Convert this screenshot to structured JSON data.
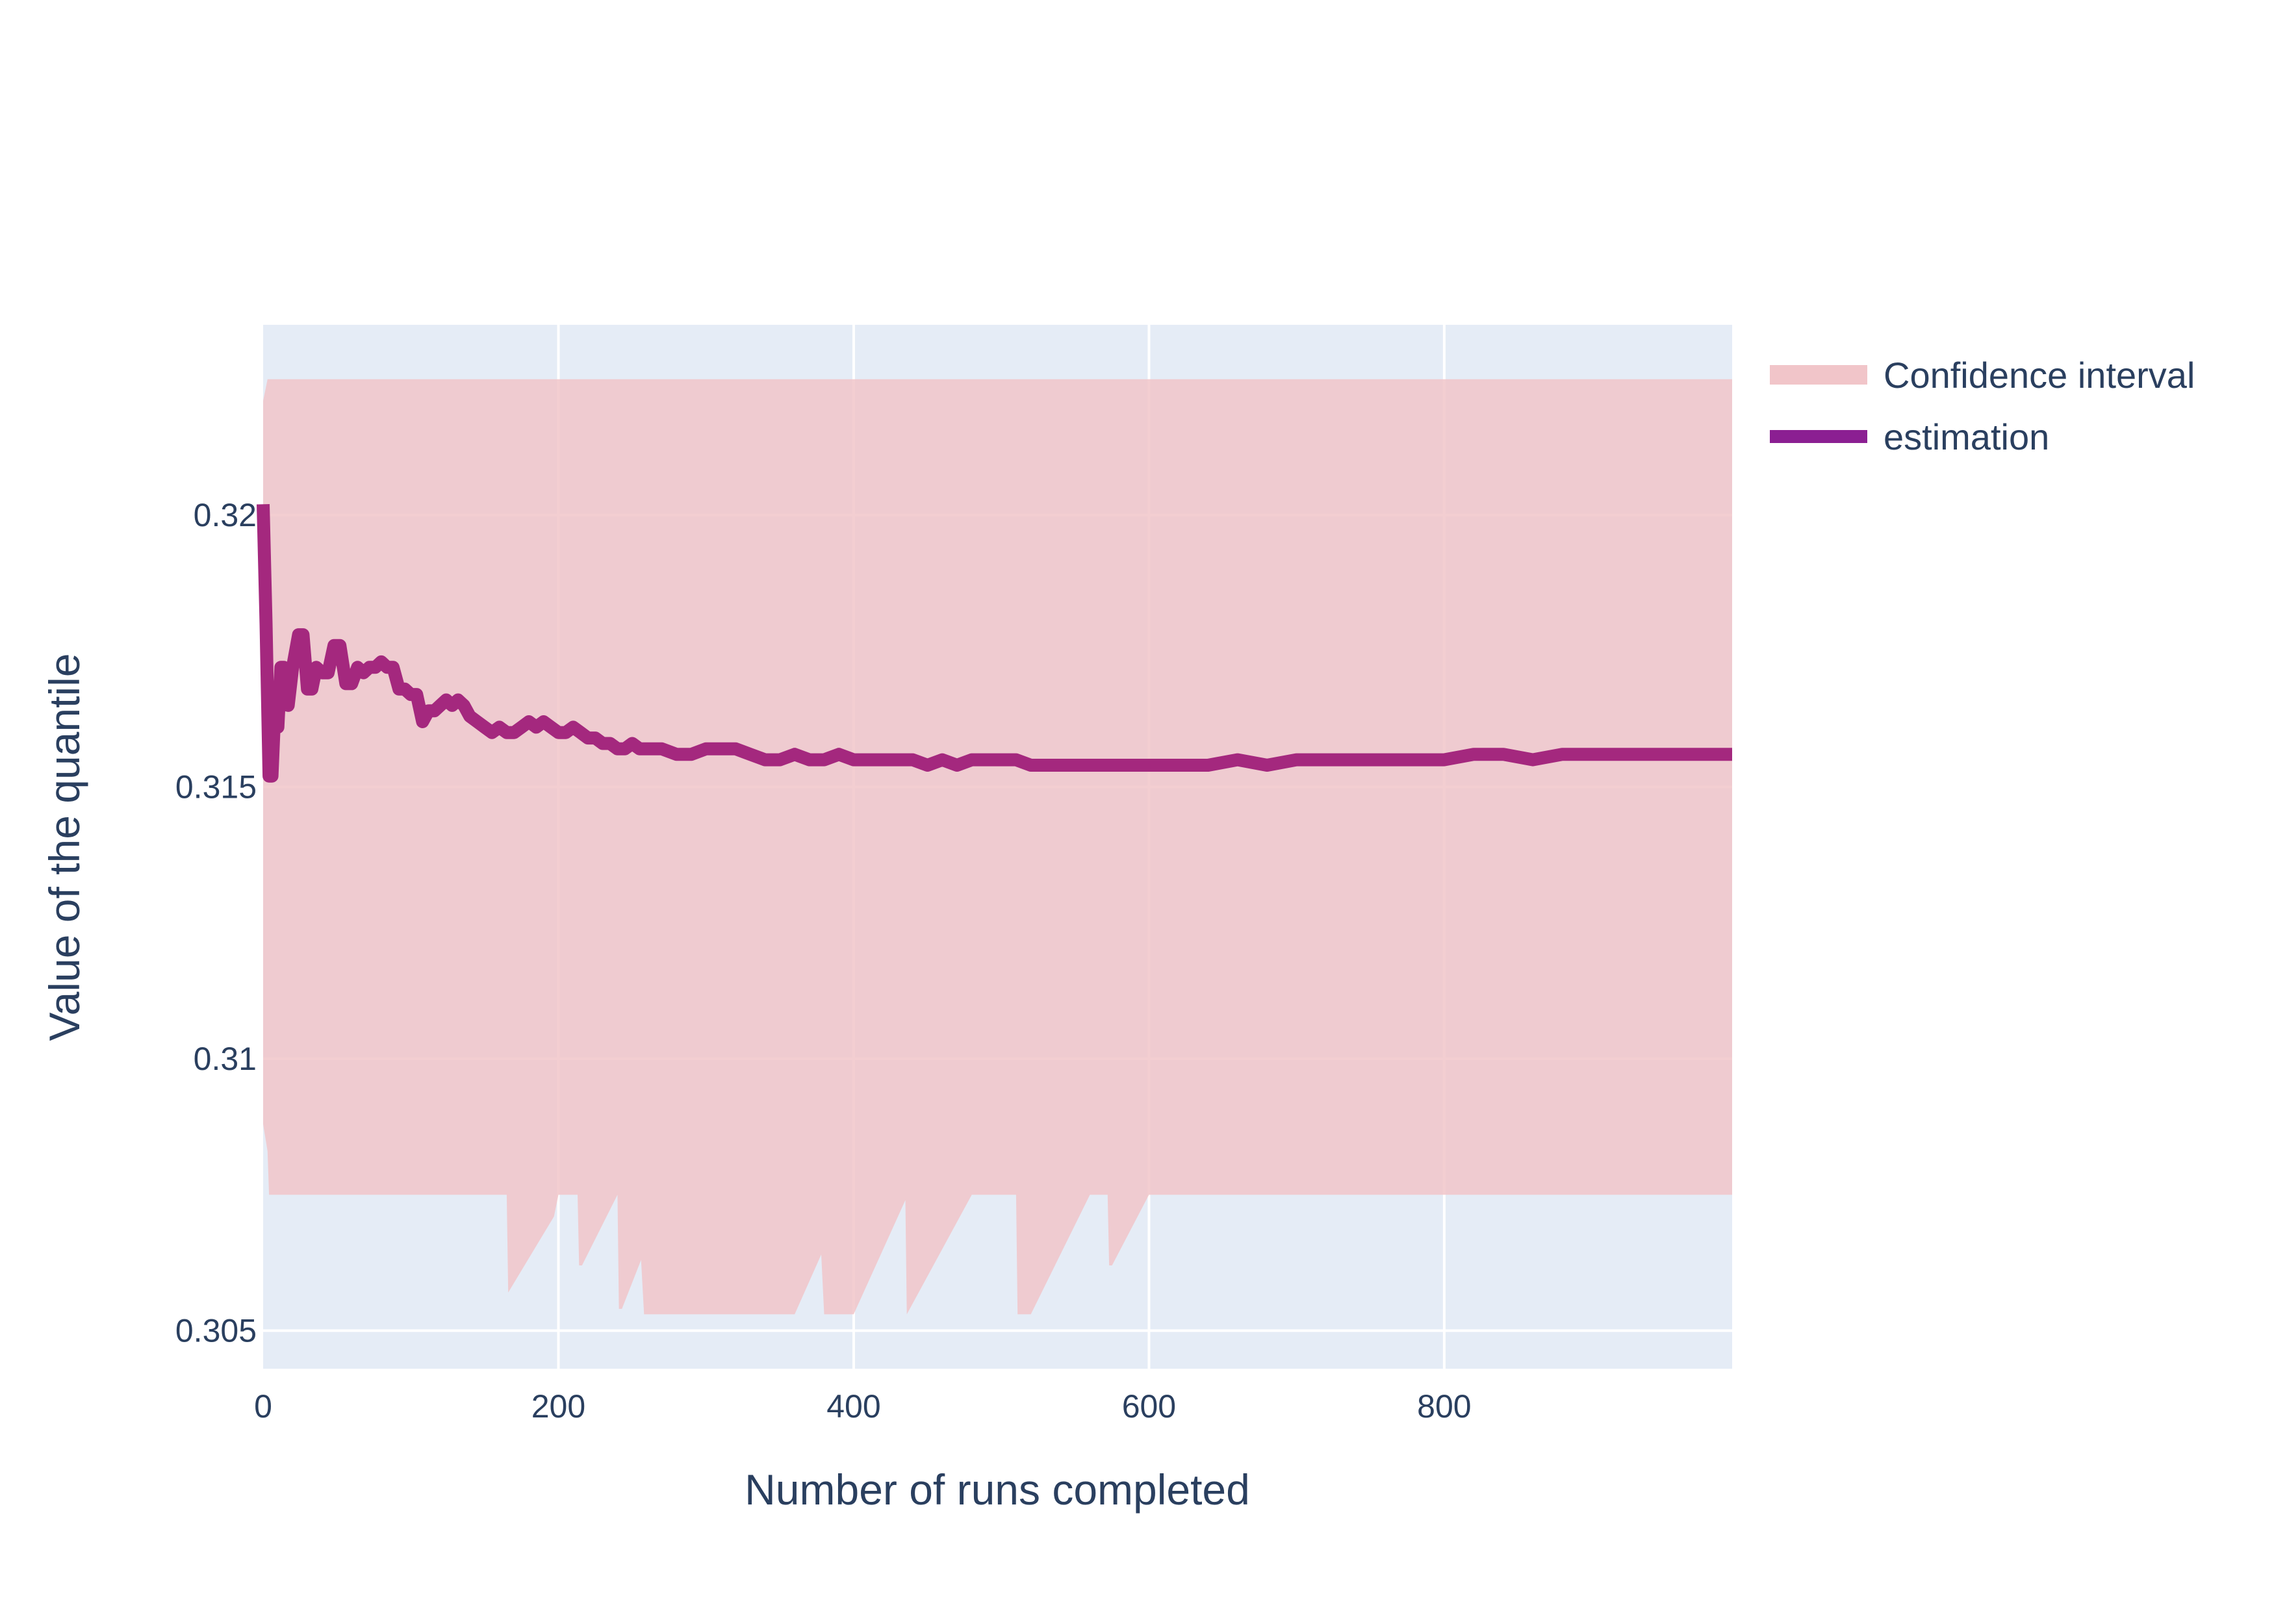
{
  "chart_data": {
    "type": "line",
    "title": "",
    "xlabel": "Number of runs completed",
    "ylabel": "Value of the quantile",
    "xlim": [
      0,
      995
    ],
    "ylim": [
      0.3043,
      0.3235
    ],
    "x_ticks": [
      0,
      200,
      400,
      600,
      800
    ],
    "y_ticks": [
      0.305,
      0.31,
      0.315,
      0.32
    ],
    "x_tick_labels": [
      "0",
      "200",
      "400",
      "600",
      "800"
    ],
    "y_tick_labels": [
      "0.305",
      "0.31",
      "0.315",
      "0.32"
    ],
    "grid": true,
    "legend_position": "top-right, outside plot",
    "series": [
      {
        "name": "Confidence interval",
        "kind": "band",
        "color": "#f1c5c9",
        "x_upper": [
          0,
          3,
          995
        ],
        "upper": [
          0.3221,
          0.3225,
          0.3225
        ],
        "x_lower": [
          0,
          3,
          4,
          165,
          166,
          197,
          200,
          213,
          214,
          216,
          240,
          241,
          243,
          256,
          258,
          259,
          360,
          378,
          380,
          383,
          398,
          400,
          435,
          436,
          480,
          480,
          500,
          510,
          511,
          520,
          560,
          572,
          573,
          575,
          600,
          995
        ],
        "lower": [
          0.3088,
          0.3083,
          0.3075,
          0.3075,
          0.3057,
          0.3071,
          0.3075,
          0.3075,
          0.3062,
          0.3062,
          0.3075,
          0.3054,
          0.3054,
          0.3063,
          0.3053,
          0.3053,
          0.3053,
          0.3064,
          0.3053,
          0.3053,
          0.3053,
          0.3053,
          0.3074,
          0.3053,
          0.3075,
          0.3075,
          0.3075,
          0.3075,
          0.3053,
          0.3053,
          0.3075,
          0.3075,
          0.3062,
          0.3062,
          0.3075,
          0.3075
        ]
      },
      {
        "name": "estimation",
        "kind": "line",
        "color": "#a4287e",
        "x": [
          0,
          2,
          4,
          6,
          8,
          10,
          12,
          14,
          17,
          20,
          24,
          27,
          30,
          33,
          36,
          40,
          44,
          48,
          52,
          56,
          60,
          64,
          68,
          72,
          76,
          80,
          84,
          88,
          92,
          96,
          100,
          104,
          108,
          112,
          116,
          120,
          124,
          128,
          132,
          136,
          140,
          145,
          150,
          155,
          160,
          165,
          170,
          175,
          180,
          185,
          190,
          195,
          200,
          205,
          210,
          215,
          220,
          225,
          230,
          235,
          240,
          245,
          250,
          255,
          260,
          270,
          280,
          290,
          300,
          310,
          320,
          330,
          340,
          350,
          360,
          370,
          380,
          390,
          400,
          410,
          420,
          430,
          440,
          450,
          460,
          470,
          480,
          490,
          500,
          510,
          520,
          530,
          540,
          550,
          560,
          570,
          580,
          590,
          600,
          620,
          640,
          660,
          680,
          700,
          720,
          740,
          760,
          780,
          800,
          820,
          840,
          860,
          880,
          900,
          920,
          940,
          960,
          980,
          995
        ],
        "y": [
          0.3202,
          0.318,
          0.3152,
          0.3152,
          0.3165,
          0.3161,
          0.3172,
          0.3172,
          0.3165,
          0.3172,
          0.3178,
          0.3178,
          0.3168,
          0.3168,
          0.3172,
          0.3171,
          0.3171,
          0.3176,
          0.3176,
          0.3169,
          0.3169,
          0.3172,
          0.3171,
          0.3172,
          0.3172,
          0.3173,
          0.3172,
          0.3172,
          0.3168,
          0.3168,
          0.3167,
          0.3167,
          0.3162,
          0.3164,
          0.3164,
          0.3165,
          0.3166,
          0.3165,
          0.3166,
          0.3165,
          0.3163,
          0.3162,
          0.3161,
          0.316,
          0.3161,
          0.316,
          0.316,
          0.3161,
          0.3162,
          0.3161,
          0.3162,
          0.3161,
          0.316,
          0.316,
          0.3161,
          0.316,
          0.3159,
          0.3159,
          0.3158,
          0.3158,
          0.3157,
          0.3157,
          0.3158,
          0.3157,
          0.3157,
          0.3157,
          0.3156,
          0.3156,
          0.3157,
          0.3157,
          0.3157,
          0.3156,
          0.3155,
          0.3155,
          0.3156,
          0.3155,
          0.3155,
          0.3156,
          0.3155,
          0.3155,
          0.3155,
          0.3155,
          0.3155,
          0.3154,
          0.3155,
          0.3154,
          0.3155,
          0.3155,
          0.3155,
          0.3155,
          0.3154,
          0.3154,
          0.3154,
          0.3154,
          0.3154,
          0.3154,
          0.3154,
          0.3154,
          0.3154,
          0.3154,
          0.3154,
          0.3155,
          0.3154,
          0.3155,
          0.3155,
          0.3155,
          0.3155,
          0.3155,
          0.3155,
          0.3156,
          0.3156,
          0.3155,
          0.3156,
          0.3156,
          0.3156,
          0.3156,
          0.3156,
          0.3156,
          0.3156
        ]
      }
    ]
  }
}
